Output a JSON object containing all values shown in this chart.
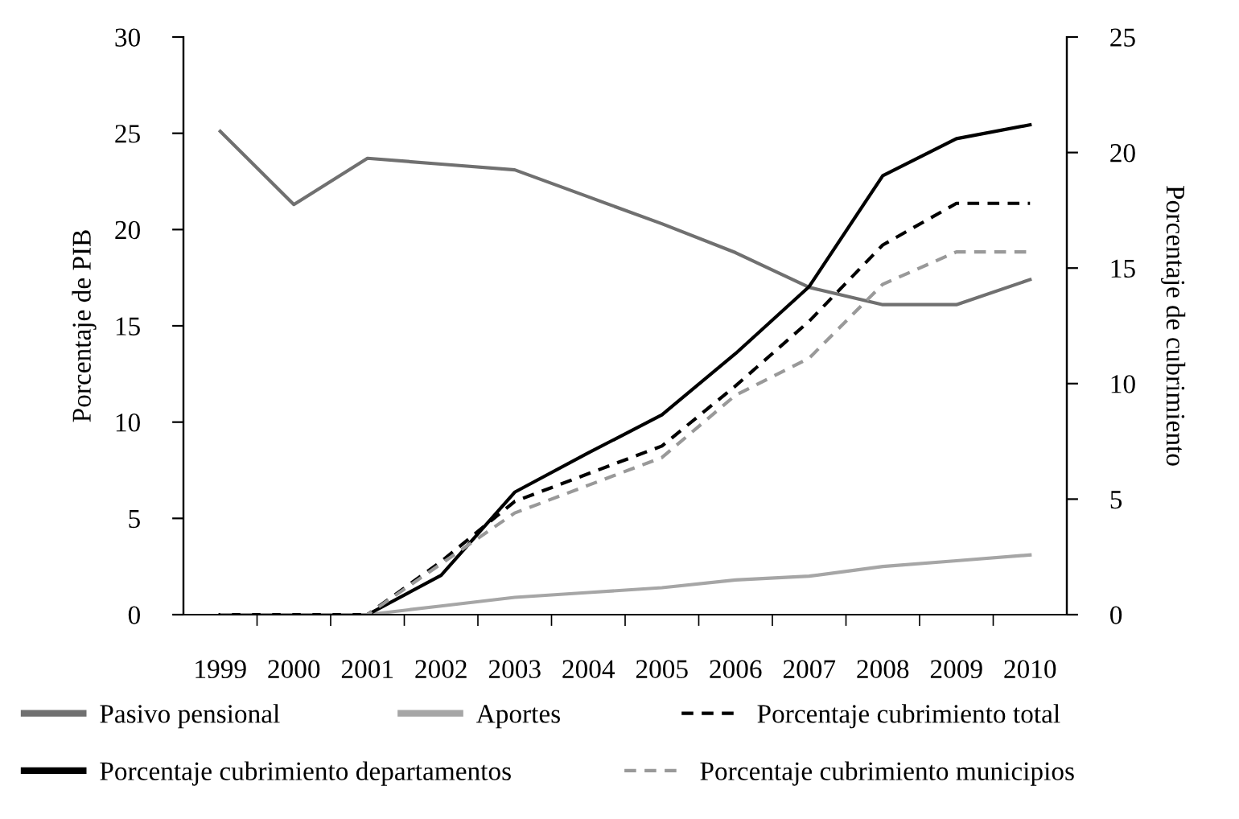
{
  "chart_data": {
    "type": "line",
    "categories": [
      "1999",
      "2000",
      "2001",
      "2002",
      "2003",
      "2004",
      "2005",
      "2006",
      "2007",
      "2008",
      "2009",
      "2010"
    ],
    "ylabel": "Porcentaje de PIB",
    "y2label": "Porcentaje de cubrimiento",
    "ylim": [
      0,
      30
    ],
    "yticks": [
      0,
      5,
      10,
      15,
      20,
      25,
      30
    ],
    "y2lim": [
      0,
      25
    ],
    "y2ticks": [
      0,
      5,
      10,
      15,
      20,
      25
    ],
    "grid": false,
    "legend": "bottom",
    "marker": "none",
    "series": [
      {
        "name": "Pasivo pensional",
        "color": "#707070",
        "line_style": "solid",
        "values": [
          25.1,
          21.3,
          23.7,
          23.4,
          23.1,
          21.7,
          20.3,
          18.8,
          17.0,
          16.1,
          16.1,
          17.4
        ]
      },
      {
        "name": "Aportes",
        "color": "#a6a6a6",
        "line_style": "solid",
        "values": [
          0,
          0,
          0,
          0.45,
          0.9,
          1.15,
          1.4,
          1.8,
          2.0,
          2.5,
          2.8,
          3.1
        ]
      },
      {
        "name": "Porcentaje cubrimiento total",
        "color": "#000000",
        "line_style": "dashed",
        "axis": "y2",
        "values": [
          0,
          0,
          0,
          2.3,
          4.9,
          6.1,
          7.3,
          9.9,
          12.7,
          16.0,
          17.8,
          17.8
        ]
      },
      {
        "name": "Porcentaje cubrimiento departamentos",
        "color": "#000000",
        "line_style": "solid",
        "axis": "y2",
        "values": [
          0,
          0,
          0,
          1.7,
          5.3,
          7.0,
          8.65,
          11.3,
          14.2,
          19.0,
          20.6,
          21.2
        ]
      },
      {
        "name": "Porcentaje cubrimiento municipios",
        "color": "#999999",
        "line_style": "dashed",
        "axis": "y2",
        "values": [
          0,
          0,
          0,
          2.2,
          4.4,
          5.6,
          6.8,
          9.5,
          11.1,
          14.3,
          15.7,
          15.7
        ]
      }
    ]
  }
}
